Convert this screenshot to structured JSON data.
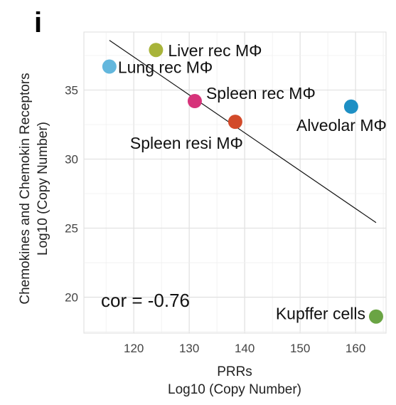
{
  "panel_label": "i",
  "chart_data": {
    "type": "scatter",
    "xlabel": [
      "PRRs",
      "Log10 (Copy Number)"
    ],
    "ylabel": [
      "Chemokines and Chemokin Receptors",
      "Log10 (Copy Number)"
    ],
    "xlim": [
      111,
      165.5
    ],
    "ylim": [
      17.4,
      39.2
    ],
    "x_ticks": [
      120,
      130,
      140,
      150,
      160
    ],
    "y_ticks": [
      20,
      25,
      30,
      35
    ],
    "grid": true,
    "points": [
      {
        "label": "Liver rec MΦ",
        "x": 124,
        "y": 37.9,
        "color": "#a8b43a"
      },
      {
        "label": "Lung rec MΦ",
        "x": 115.6,
        "y": 36.7,
        "color": "#63b7dd"
      },
      {
        "label": "Spleen rec MΦ",
        "x": 131,
        "y": 34.2,
        "color": "#d6337a"
      },
      {
        "label": "Spleen resi MΦ",
        "x": 138.3,
        "y": 32.7,
        "color": "#d24a2a"
      },
      {
        "label": "Alveolar MΦ",
        "x": 159.2,
        "y": 33.8,
        "color": "#1d8fc4"
      },
      {
        "label": "Kupffer cells",
        "x": 163.7,
        "y": 18.6,
        "color": "#6aa444"
      }
    ],
    "trend_line": {
      "x": [
        115.6,
        163.7
      ],
      "y": [
        38.6,
        25.4
      ]
    },
    "annotation": "cor = -0.76"
  }
}
